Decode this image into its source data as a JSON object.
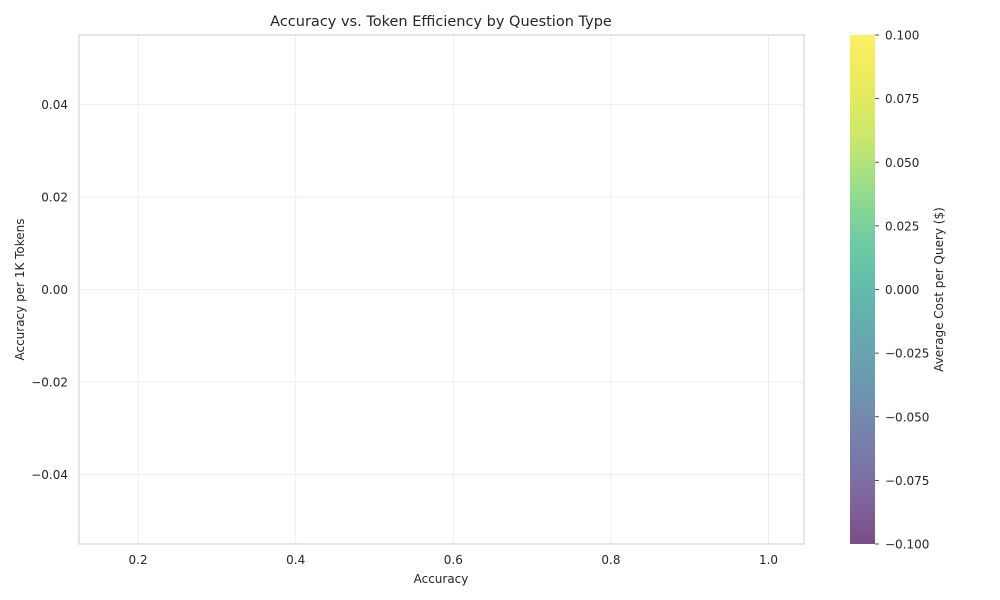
{
  "chart_data": {
    "type": "scatter",
    "title": "Accuracy vs. Token Efficiency by Question Type",
    "xlabel": "Accuracy",
    "ylabel": "Accuracy per 1K Tokens",
    "xlim": [
      0.125,
      1.045
    ],
    "ylim": [
      -0.055,
      0.055
    ],
    "x_ticks": [
      0.2,
      0.4,
      0.6,
      0.8,
      1.0
    ],
    "x_tick_labels": [
      "0.2",
      "0.4",
      "0.6",
      "0.8",
      "1.0"
    ],
    "y_ticks": [
      0.04,
      0.02,
      0.0,
      -0.02,
      -0.04
    ],
    "y_tick_labels": [
      "0.04",
      "0.02",
      "0.00",
      "−0.02",
      "−0.04"
    ],
    "grid": true,
    "series": [
      {
        "x": [],
        "y": [],
        "c": []
      }
    ],
    "colorbar": {
      "label": "Average Cost per Query ($)",
      "colormap": "viridis",
      "alpha": 0.7,
      "range": [
        -0.1,
        0.1
      ],
      "ticks": [
        0.1,
        0.075,
        0.05,
        0.025,
        0.0,
        -0.025,
        -0.05,
        -0.075,
        -0.1
      ],
      "tick_labels": [
        "0.100",
        "0.075",
        "0.050",
        "0.025",
        "0.000",
        "−0.025",
        "−0.050",
        "−0.075",
        "−0.100"
      ]
    }
  }
}
